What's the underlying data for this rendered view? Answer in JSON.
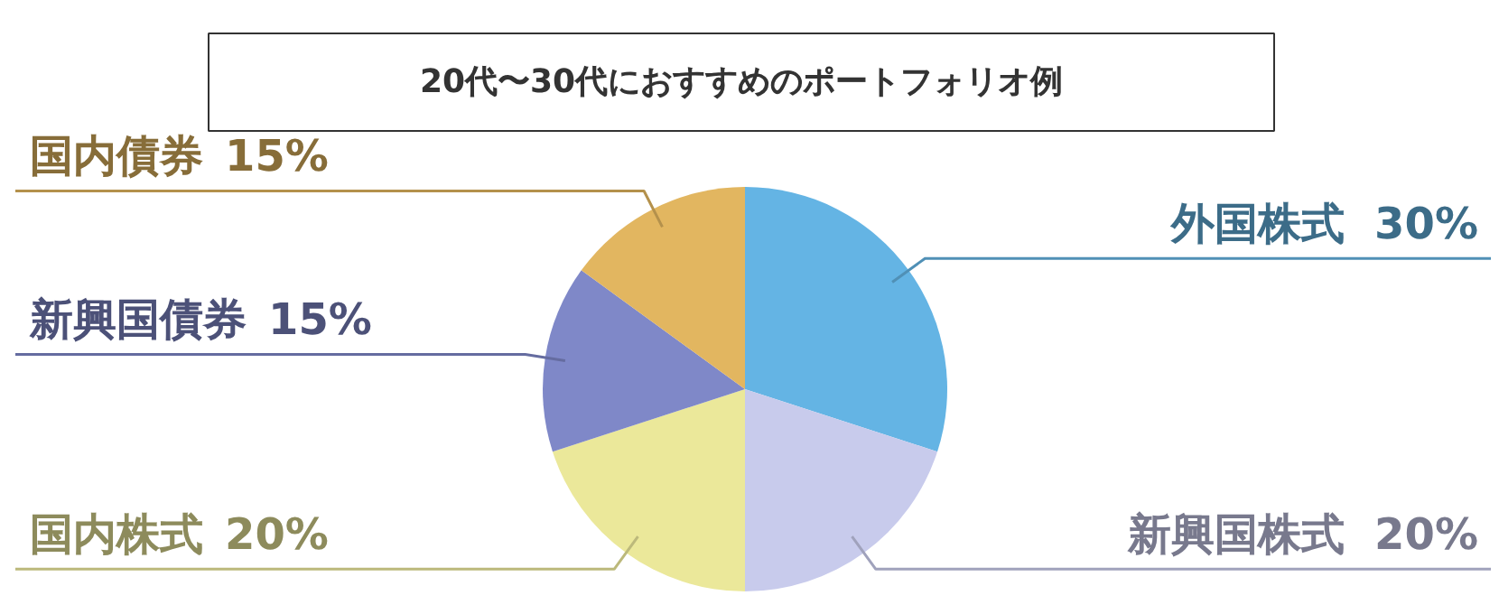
{
  "chart_data": {
    "type": "pie",
    "title": "20代〜30代におすすめのポートフォリオ例",
    "categories": [
      "外国株式",
      "新興国株式",
      "国内株式",
      "新興国債券",
      "国内債券"
    ],
    "values": [
      30,
      20,
      20,
      15,
      15
    ],
    "colors": [
      "#64b4e4",
      "#c8cbec",
      "#ebe89a",
      "#7f88c8",
      "#e2b660"
    ],
    "value_labels": [
      "30%",
      "20%",
      "20%",
      "15%",
      "15%"
    ],
    "legend": false
  }
}
